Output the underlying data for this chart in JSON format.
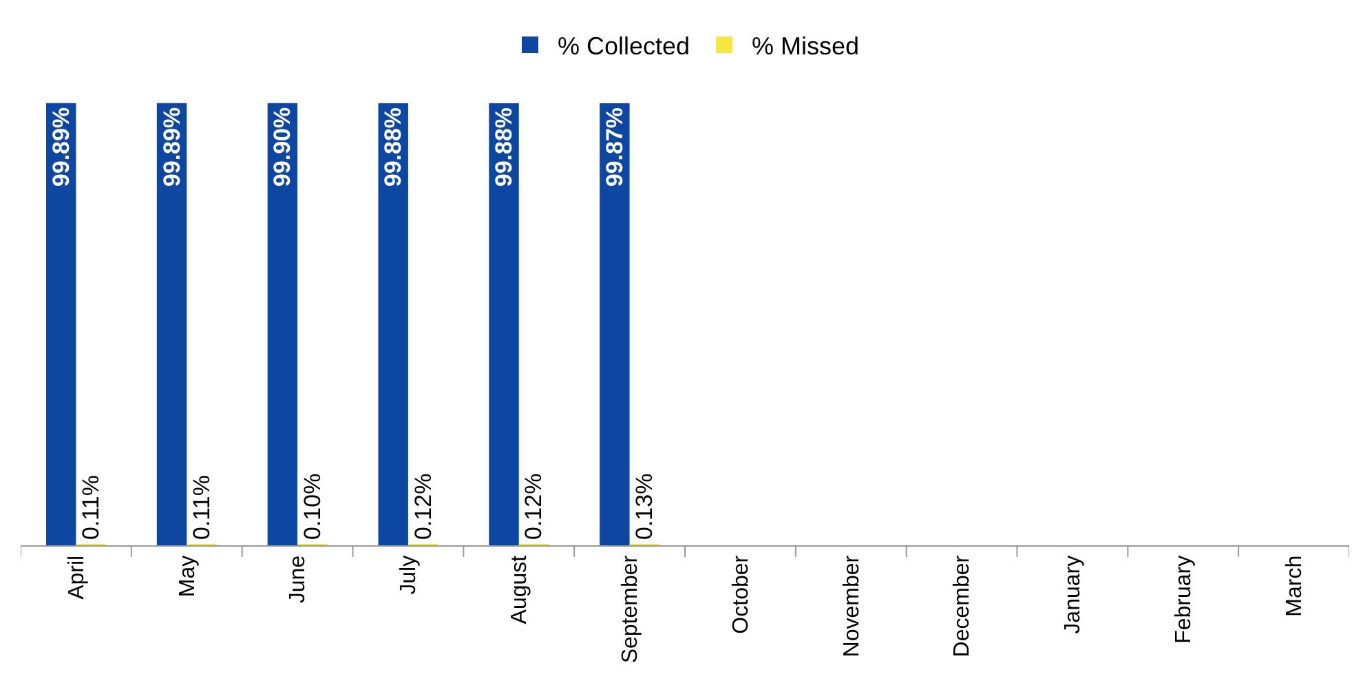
{
  "chart_data": {
    "type": "bar",
    "legend": "top",
    "grid": false,
    "categories": [
      "April",
      "May",
      "June",
      "July",
      "August",
      "September",
      "October",
      "November",
      "December",
      "January",
      "February",
      "March"
    ],
    "series": [
      {
        "name": "% Collected",
        "color": "#0d47a1",
        "values": [
          99.89,
          99.89,
          99.9,
          99.88,
          99.88,
          99.87,
          null,
          null,
          null,
          null,
          null,
          null
        ],
        "value_labels": [
          "99.89%",
          "99.89%",
          "99.90%",
          "99.88%",
          "99.88%",
          "99.87%",
          null,
          null,
          null,
          null,
          null,
          null
        ]
      },
      {
        "name": "% Missed",
        "color": "#f5e642",
        "values": [
          0.11,
          0.11,
          0.1,
          0.12,
          0.12,
          0.13,
          null,
          null,
          null,
          null,
          null,
          null
        ],
        "value_labels": [
          "0.11%",
          "0.11%",
          "0.10%",
          "0.12%",
          "0.12%",
          "0.13%",
          null,
          null,
          null,
          null,
          null,
          null
        ]
      }
    ]
  }
}
